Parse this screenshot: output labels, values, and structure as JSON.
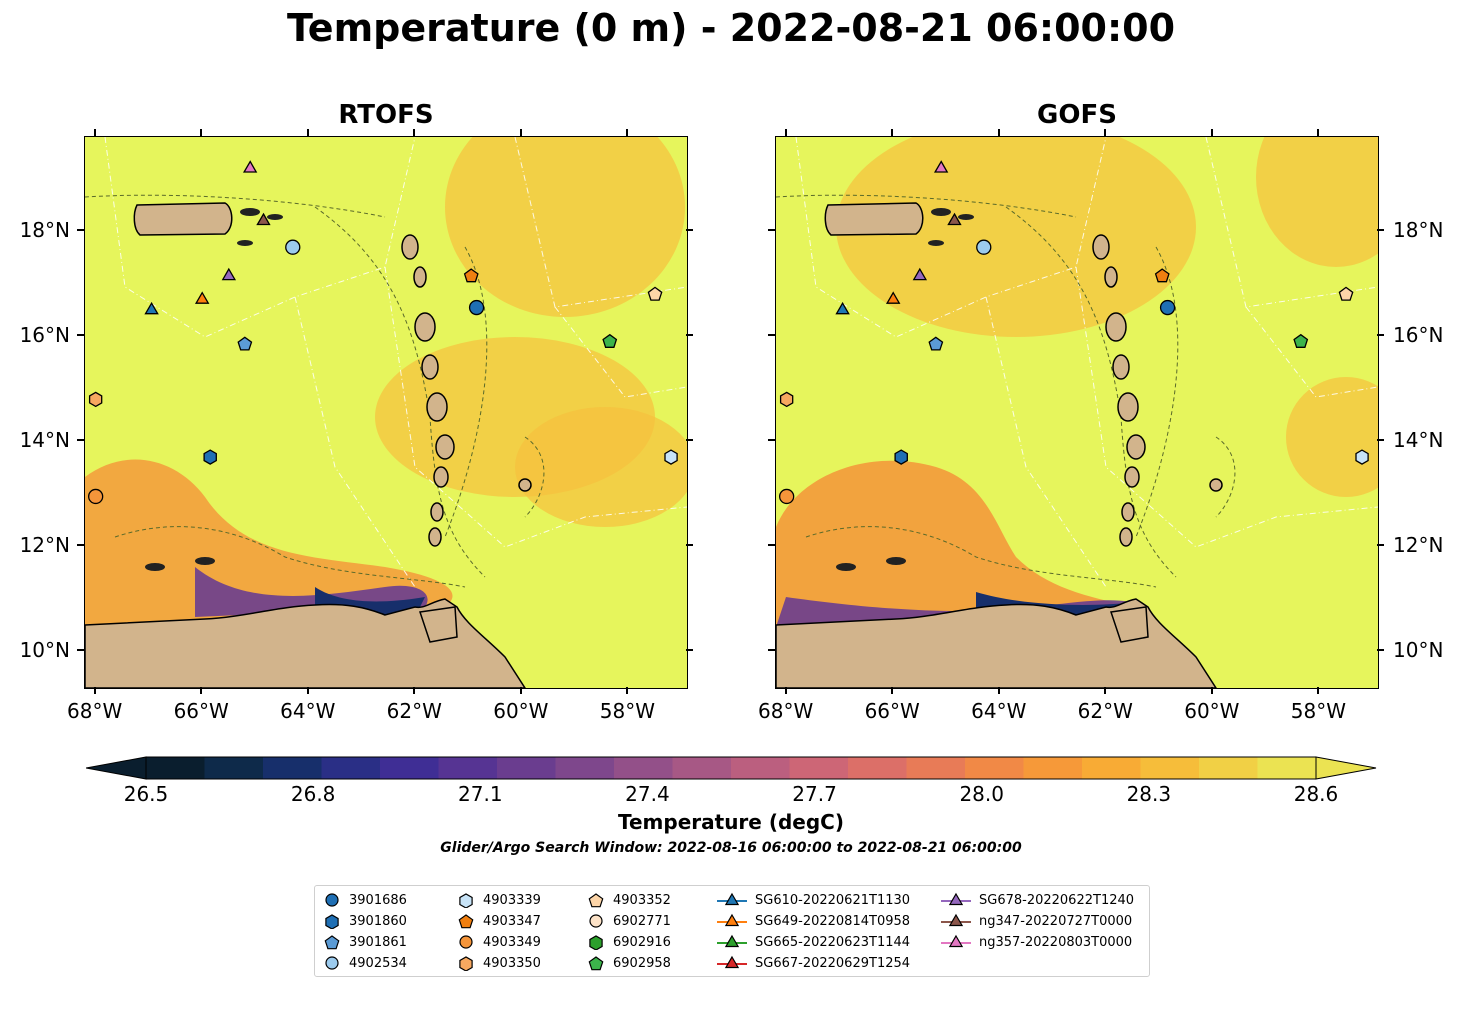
{
  "title": "Temperature (0 m) - 2022-08-21 06:00:00",
  "panels": [
    {
      "title": "RTOFS"
    },
    {
      "title": "GOFS"
    }
  ],
  "axes": {
    "x_ticks": [
      "68°W",
      "66°W",
      "64°W",
      "62°W",
      "60°W",
      "58°W"
    ],
    "y_ticks": [
      "10°N",
      "12°N",
      "14°N",
      "16°N",
      "18°N"
    ],
    "lon_range": [
      -68.2,
      -56.9
    ],
    "lat_range": [
      9.3,
      19.8
    ]
  },
  "colorbar": {
    "label": "Temperature (degC)",
    "ticks": [
      "26.5",
      "26.8",
      "27.1",
      "27.4",
      "27.7",
      "28.0",
      "28.3",
      "28.6"
    ],
    "range": [
      26.5,
      28.6
    ],
    "extend": "both",
    "colors": [
      "#0a1e2e",
      "#0e2a4a",
      "#172f6b",
      "#2a2f86",
      "#3f2e95",
      "#563493",
      "#6a3d8f",
      "#7e478c",
      "#935089",
      "#a75885",
      "#bb5f7f",
      "#cd6676",
      "#dc6f68",
      "#e87b57",
      "#f18946",
      "#f69939",
      "#f8ab35",
      "#f6bd3a",
      "#f1d045",
      "#ebe352"
    ]
  },
  "search_window": "Glider/Argo Search Window: 2022-08-16 06:00:00 to 2022-08-21 06:00:00",
  "legend": {
    "columns": [
      [
        {
          "label": "3901686",
          "marker": "circle",
          "color": "#1f6fb4"
        },
        {
          "label": "3901860",
          "marker": "hexagon",
          "color": "#1f6fb4"
        },
        {
          "label": "3901861",
          "marker": "pentagon",
          "color": "#5b9bd5"
        },
        {
          "label": "4902534",
          "marker": "circle",
          "color": "#9ccbee"
        }
      ],
      [
        {
          "label": "4903339",
          "marker": "hexagon",
          "color": "#c8e4f8"
        },
        {
          "label": "4903347",
          "marker": "pentagon",
          "color": "#f07f10"
        },
        {
          "label": "4903349",
          "marker": "circle",
          "color": "#f5953a"
        },
        {
          "label": "4903350",
          "marker": "hexagon",
          "color": "#f7a860"
        }
      ],
      [
        {
          "label": "4903352",
          "marker": "pentagon",
          "color": "#fdd5a8"
        },
        {
          "label": "6902771",
          "marker": "circle",
          "color": "#fde3c8"
        },
        {
          "label": "6902916",
          "marker": "hexagon",
          "color": "#2ca02c"
        },
        {
          "label": "6902958",
          "marker": "pentagon",
          "color": "#3cb44b"
        }
      ],
      [
        {
          "label": "SG610-20220621T1130",
          "marker": "triangle",
          "color": "#1f77b4"
        },
        {
          "label": "SG649-20220814T0958",
          "marker": "triangle",
          "color": "#ff7f0e"
        },
        {
          "label": "SG665-20220623T1144",
          "marker": "triangle",
          "color": "#2ca02c"
        },
        {
          "label": "SG667-20220629T1254",
          "marker": "triangle",
          "color": "#d62728"
        }
      ],
      [
        {
          "label": "SG678-20220622T1240",
          "marker": "triangle",
          "color": "#9467bd"
        },
        {
          "label": "ng347-20220727T0000",
          "marker": "triangle",
          "color": "#8c564b"
        },
        {
          "label": "ng357-20220803T0000",
          "marker": "triangle",
          "color": "#e377c2"
        }
      ]
    ]
  },
  "stations": [
    {
      "id": "3901686",
      "lon": -60.85,
      "lat": 16.55
    },
    {
      "id": "3901860",
      "lon": -65.85,
      "lat": 13.7
    },
    {
      "id": "3901861",
      "lon": -65.2,
      "lat": 15.85
    },
    {
      "id": "4902534",
      "lon": -64.3,
      "lat": 17.7
    },
    {
      "id": "4903339",
      "lon": -57.2,
      "lat": 13.7
    },
    {
      "id": "4903347",
      "lon": -60.95,
      "lat": 17.15
    },
    {
      "id": "4903349",
      "lon": -68.0,
      "lat": 12.95
    },
    {
      "id": "4903350",
      "lon": -68.0,
      "lat": 14.8
    },
    {
      "id": "4903352",
      "lon": -57.5,
      "lat": 16.8
    },
    {
      "id": "6902958",
      "lon": -58.35,
      "lat": 15.9
    },
    {
      "id": "SG610-20220621T1130",
      "lon": -66.95,
      "lat": 16.5
    },
    {
      "id": "SG649-20220814T0958",
      "lon": -66.0,
      "lat": 16.7
    },
    {
      "id": "SG678-20220622T1240",
      "lon": -65.5,
      "lat": 17.15
    },
    {
      "id": "ng347-20220727T0000",
      "lon": -64.85,
      "lat": 18.2
    },
    {
      "id": "ng357-20220803T0000",
      "lon": -65.1,
      "lat": 19.2
    }
  ]
}
